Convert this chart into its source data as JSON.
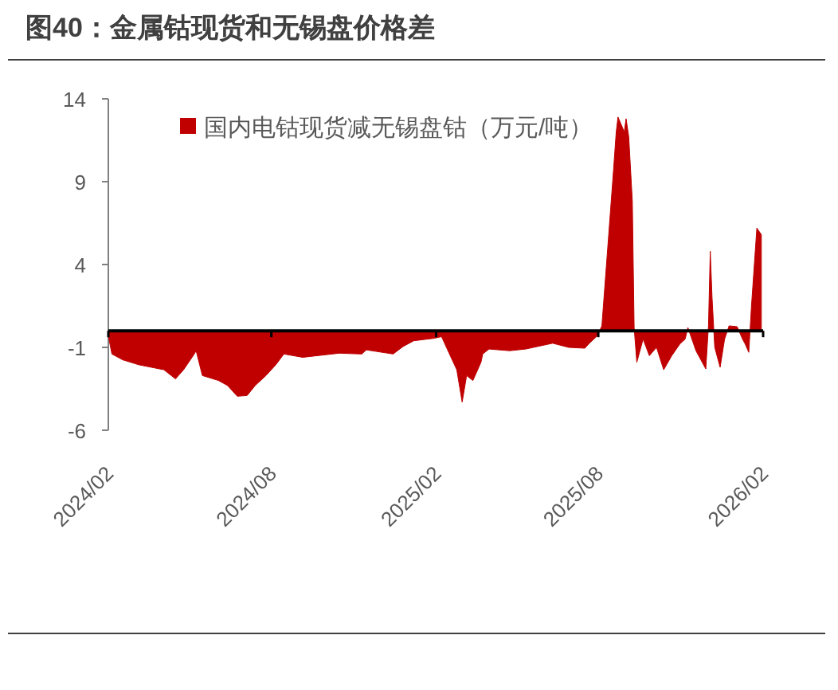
{
  "chart_data": {
    "type": "area",
    "title": "图40：金属钴现货和无锡盘价格差",
    "x": [
      "2024-02-01",
      "2024-02-05",
      "2024-02-17",
      "2024-03-06",
      "2024-04-03",
      "2024-04-16",
      "2024-04-25",
      "2024-05-07",
      "2024-05-09",
      "2024-05-16",
      "2024-06-03",
      "2024-06-13",
      "2024-06-24",
      "2024-07-05",
      "2024-07-14",
      "2024-07-26",
      "2024-08-06",
      "2024-08-15",
      "2024-09-05",
      "2024-10-16",
      "2024-11-10",
      "2024-11-15",
      "2024-12-15",
      "2024-12-26",
      "2025-01-07",
      "2025-01-30",
      "2025-02-07",
      "2025-02-15",
      "2025-02-24",
      "2025-03-02",
      "2025-03-07",
      "2025-03-14",
      "2025-03-23",
      "2025-03-25",
      "2025-04-01",
      "2025-04-24",
      "2025-05-12",
      "2025-06-11",
      "2025-06-29",
      "2025-07-17",
      "2025-07-22",
      "2025-07-31",
      "2025-08-05",
      "2025-08-18",
      "2025-08-21",
      "2025-08-23",
      "2025-08-30",
      "2025-09-01",
      "2025-09-04",
      "2025-09-08",
      "2025-09-10",
      "2025-09-13",
      "2025-09-20",
      "2025-09-27",
      "2025-10-05",
      "2025-10-13",
      "2025-10-22",
      "2025-10-31",
      "2025-11-06",
      "2025-11-09",
      "2025-11-18",
      "2025-11-29",
      "2025-12-02",
      "2025-12-04",
      "2025-12-06",
      "2025-12-09",
      "2025-12-15",
      "2025-12-20",
      "2025-12-25",
      "2026-01-03",
      "2026-01-09",
      "2026-01-12",
      "2026-01-16",
      "2026-01-19",
      "2026-01-25",
      "2026-01-30"
    ],
    "series": [
      {
        "name": "国内电钴现货减无锡盘钴（万元/吨）",
        "color": "#c00000",
        "values": [
          -0.3,
          -1.4,
          -1.75,
          -2.05,
          -2.35,
          -2.9,
          -2.35,
          -1.4,
          -1.2,
          -2.7,
          -3.0,
          -3.3,
          -3.95,
          -3.9,
          -3.3,
          -2.7,
          -2.05,
          -1.4,
          -1.6,
          -1.35,
          -1.4,
          -1.15,
          -1.4,
          -0.95,
          -0.6,
          -0.45,
          -0.35,
          -1.3,
          -2.35,
          -4.3,
          -2.7,
          -3.0,
          -1.9,
          -1.4,
          -1.1,
          -1.2,
          -1.1,
          -0.75,
          -1.0,
          -1.05,
          -0.75,
          -0.3,
          0.3,
          9.7,
          12.0,
          12.9,
          12.0,
          12.8,
          11.7,
          7.8,
          0.2,
          -1.9,
          -0.5,
          -1.5,
          -1.0,
          -2.35,
          -1.5,
          -0.8,
          -0.5,
          0.2,
          -1.2,
          -2.3,
          0.3,
          4.8,
          2.0,
          -1.0,
          -2.2,
          -0.5,
          0.3,
          0.25,
          -0.5,
          -0.8,
          -1.3,
          1.5,
          6.2,
          5.8
        ]
      }
    ],
    "xlim": [
      "2024-02-01",
      "2026-02-01"
    ],
    "xticks": [
      {
        "value": "2024-02-01",
        "label": "2024/02"
      },
      {
        "value": "2024-08-01",
        "label": "2024/08"
      },
      {
        "value": "2025-02-01",
        "label": "2025/02"
      },
      {
        "value": "2025-08-01",
        "label": "2025/08"
      },
      {
        "value": "2026-02-01",
        "label": "2026/02"
      }
    ],
    "ylim": [
      -6,
      14
    ],
    "yticks": [
      14,
      9,
      4,
      -1,
      -6
    ],
    "grid": false,
    "legend": "top"
  }
}
